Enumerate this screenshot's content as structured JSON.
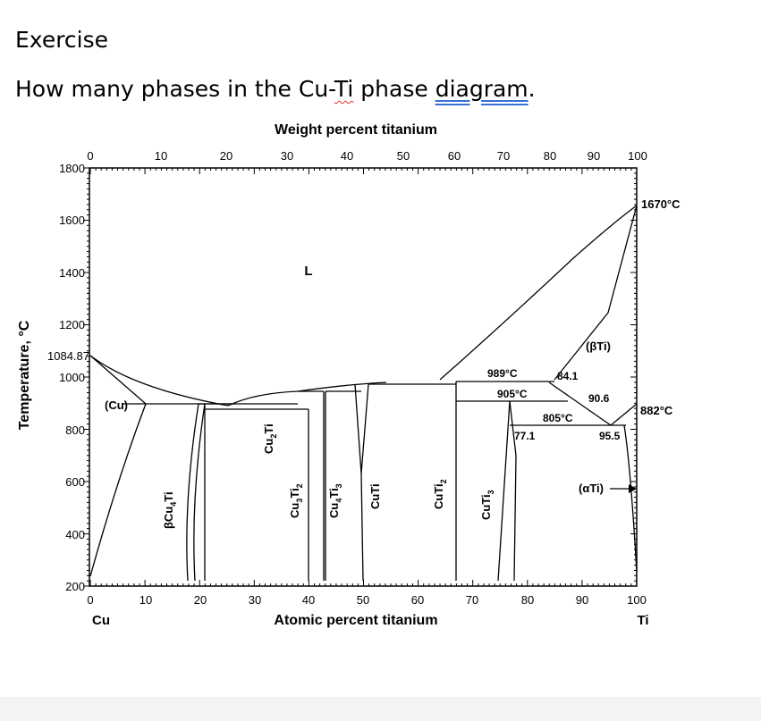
{
  "slide": {
    "title": "Exercise",
    "question_prefix": "How many phases in the Cu-",
    "question_ti": "Ti",
    "question_space": " phase ",
    "question_diagram": "diagram",
    "question_period": "."
  },
  "diagram": {
    "top_axis_title": "Weight percent titanium",
    "bottom_axis_title": "Atomic percent titanium",
    "left_axis_title": "Temperature, °C",
    "left_element": "Cu",
    "right_element": "Ti",
    "top_ticks": [
      "0",
      "10",
      "20",
      "30",
      "40",
      "50",
      "60",
      "70",
      "80",
      "90",
      "100"
    ],
    "bottom_ticks": [
      "0",
      "10",
      "20",
      "30",
      "40",
      "50",
      "60",
      "70",
      "80",
      "90",
      "100"
    ],
    "y_ticks": [
      "1800",
      "1600",
      "1400",
      "1200",
      "1084.87",
      "1000",
      "800",
      "600",
      "400",
      "200"
    ],
    "phase_labels": {
      "liquid": "L",
      "cu": "(Cu)",
      "beta_ti": "(βTi)",
      "alpha_ti": "(αTi)",
      "bcu4ti": "βCu",
      "bcu4ti_sub": "4",
      "bcu4ti_end": "Ti",
      "cu2ti": "Cu",
      "cu2ti_sub": "2",
      "cu2ti_end": "Ti",
      "cu3ti2": "Cu",
      "cu3ti2_sub1": "3",
      "cu3ti2_mid": "Ti",
      "cu3ti2_sub2": "2",
      "cu4ti3": "Cu",
      "cu4ti3_sub1": "4",
      "cu4ti3_mid": "Ti",
      "cu4ti3_sub2": "3",
      "cuti": "CuTi",
      "cuti2": "CuTi",
      "cuti2_sub": "2",
      "cuti3": "CuTi",
      "cuti3_sub": "3"
    },
    "annotations": {
      "t1670": "1670°C",
      "t882": "882°C",
      "t989": "989°C",
      "t905": "905°C",
      "t805": "805°C",
      "c84_1": "84.1",
      "c90_6": "90.6",
      "c77_1": "77.1",
      "c95_5": "95.5"
    }
  }
}
